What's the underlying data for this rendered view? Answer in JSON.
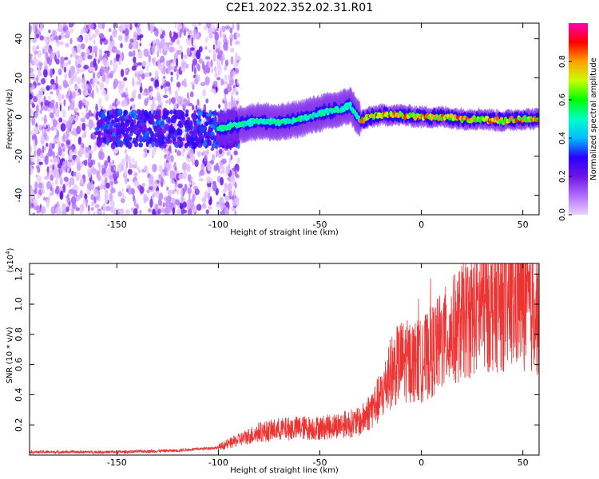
{
  "title": "C2E1.2022.352.02.31.R01",
  "colors": {
    "spectrogram_low": "#cc99ff",
    "spectrogram_mid": "#6600cc",
    "snr_line": "#ee3333"
  },
  "chart_data": [
    {
      "type": "heatmap",
      "name": "spectrogram",
      "xlabel": "Height of straight line (km)",
      "ylabel": "Frequency (Hz)",
      "xlim": [
        -193,
        58
      ],
      "ylim": [
        -50,
        48
      ],
      "xticks": [
        -150,
        -100,
        -50,
        0,
        50
      ],
      "yticks": [
        -40,
        -20,
        0,
        20,
        40
      ],
      "description_ridge": [
        {
          "x": -100,
          "y": -6
        },
        {
          "x": -90,
          "y": -4
        },
        {
          "x": -80,
          "y": -2
        },
        {
          "x": -70,
          "y": -3
        },
        {
          "x": -60,
          "y": -1
        },
        {
          "x": -50,
          "y": 2
        },
        {
          "x": -40,
          "y": 4
        },
        {
          "x": -35,
          "y": 6
        },
        {
          "x": -30,
          "y": -2
        },
        {
          "x": -25,
          "y": 0
        },
        {
          "x": -20,
          "y": 1
        },
        {
          "x": -10,
          "y": 1
        },
        {
          "x": 0,
          "y": 0
        },
        {
          "x": 10,
          "y": 0
        },
        {
          "x": 20,
          "y": -1
        },
        {
          "x": 30,
          "y": -1
        },
        {
          "x": 40,
          "y": -2
        },
        {
          "x": 50,
          "y": -1
        },
        {
          "x": 58,
          "y": -1
        }
      ],
      "colorbar": {
        "label": "Normalized spectral amplitude",
        "range": [
          0,
          1
        ],
        "ticks": [
          0.0,
          0.2,
          0.4,
          0.6,
          0.8
        ],
        "tick_labels": [
          "0.0",
          "0.2",
          "0.4",
          "0.6",
          "0.8"
        ]
      }
    },
    {
      "type": "line",
      "name": "snr",
      "xlabel": "Height of straight line (km)",
      "ylabel": "SNR (10 * v/v)",
      "multiplier_label": "(x10",
      "multiplier_exp": "4",
      "multiplier_close": ")",
      "xlim": [
        -193,
        58
      ],
      "ylim": [
        0,
        1.27
      ],
      "xticks": [
        -150,
        -100,
        -50,
        0,
        50
      ],
      "yticks": [
        0.2,
        0.4,
        0.6,
        0.8,
        1.0,
        1.2
      ],
      "envelope": [
        {
          "x": -193,
          "y": 0.02
        },
        {
          "x": -150,
          "y": 0.02
        },
        {
          "x": -120,
          "y": 0.03
        },
        {
          "x": -100,
          "y": 0.05
        },
        {
          "x": -90,
          "y": 0.1
        },
        {
          "x": -80,
          "y": 0.15
        },
        {
          "x": -70,
          "y": 0.17
        },
        {
          "x": -60,
          "y": 0.18
        },
        {
          "x": -50,
          "y": 0.18
        },
        {
          "x": -40,
          "y": 0.2
        },
        {
          "x": -30,
          "y": 0.22
        },
        {
          "x": -20,
          "y": 0.38
        },
        {
          "x": -15,
          "y": 0.55
        },
        {
          "x": -10,
          "y": 0.62
        },
        {
          "x": 0,
          "y": 0.62
        },
        {
          "x": 10,
          "y": 0.75
        },
        {
          "x": 20,
          "y": 0.88
        },
        {
          "x": 30,
          "y": 0.98
        },
        {
          "x": 40,
          "y": 1.0
        },
        {
          "x": 50,
          "y": 1.02
        },
        {
          "x": 58,
          "y": 0.92
        }
      ]
    }
  ]
}
